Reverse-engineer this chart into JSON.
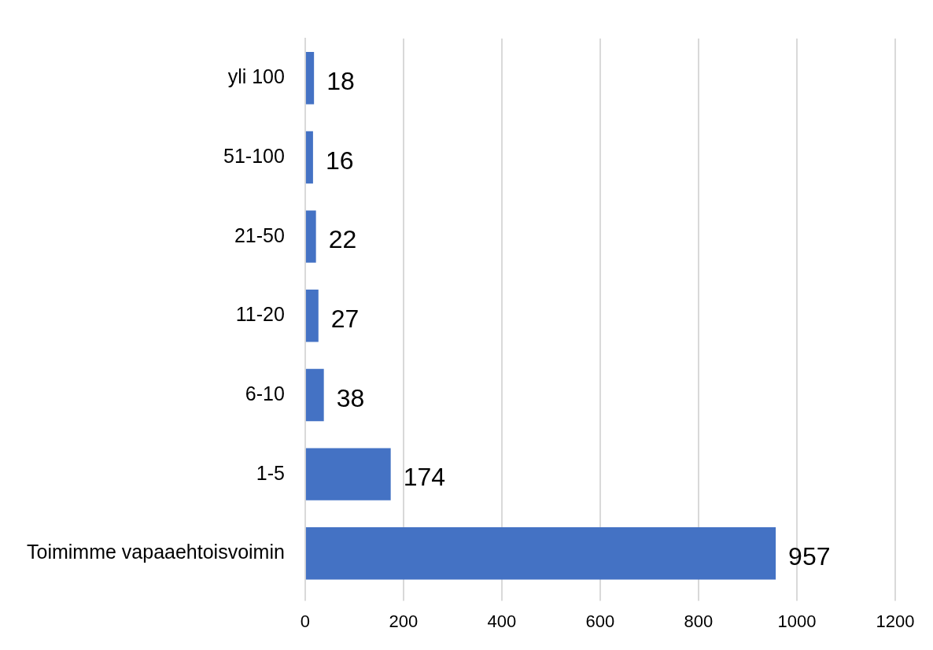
{
  "chart_data": {
    "type": "bar",
    "orientation": "horizontal",
    "categories": [
      "yli 100",
      "51-100",
      "21-50",
      "11-20",
      "6-10",
      "1-5",
      "Toimimme vapaaehtoisvoimin"
    ],
    "values": [
      18,
      16,
      22,
      27,
      38,
      174,
      957
    ],
    "color": "#4472c4",
    "xlim": [
      0,
      1200
    ],
    "xticks": [
      0,
      200,
      400,
      600,
      800,
      1000,
      1200
    ],
    "grid": "x",
    "legend": false,
    "data_labels": true
  }
}
